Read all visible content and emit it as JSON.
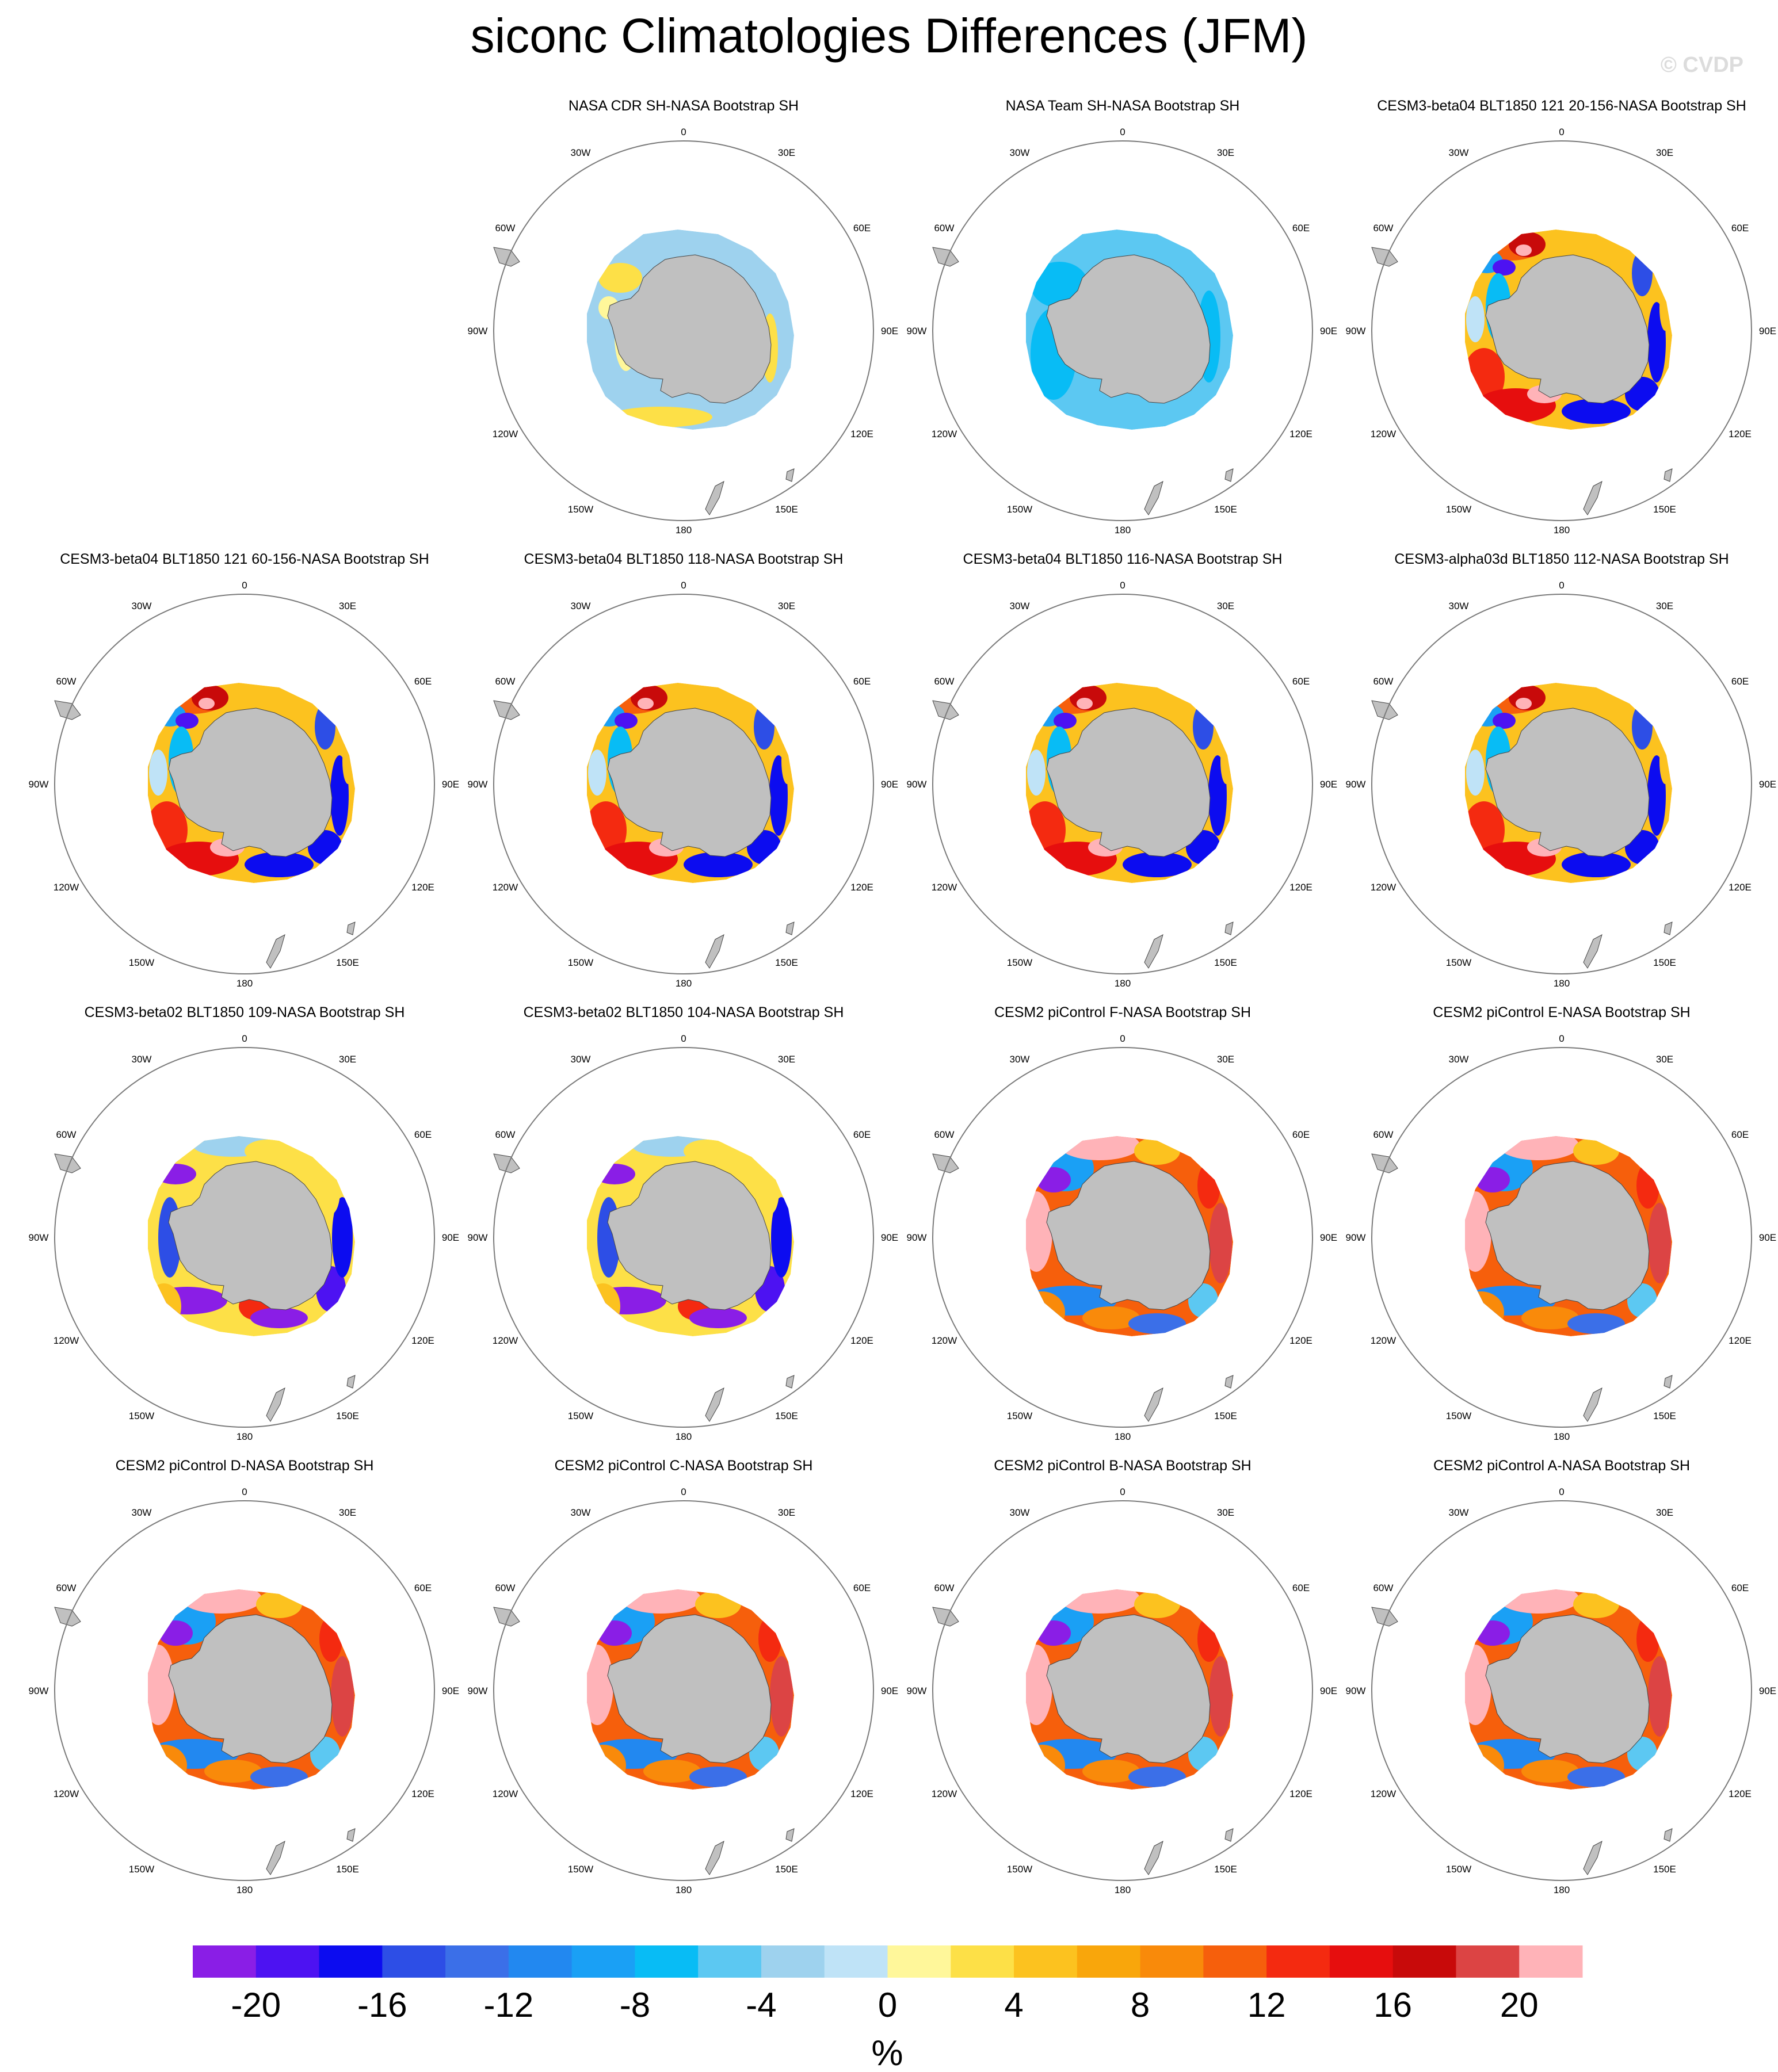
{
  "title": "siconc Climatologies Differences (JFM)",
  "watermark": "© CVDP",
  "longitude_labels": [
    "0",
    "30E",
    "60E",
    "90E",
    "120E",
    "150E",
    "180",
    "150W",
    "120W",
    "90W",
    "60W",
    "30W"
  ],
  "panels": [
    {
      "title": "NASA CDR SH-NASA Bootstrap SH",
      "pattern": "cdr"
    },
    {
      "title": "NASA Team SH-NASA Bootstrap SH",
      "pattern": "team"
    },
    {
      "title": "CESM3-beta04 BLT1850 121 20-156-NASA Bootstrap SH",
      "pattern": "beta04"
    },
    {
      "title": "CESM3-beta04 BLT1850 121 60-156-NASA Bootstrap SH",
      "pattern": "beta04"
    },
    {
      "title": "CESM3-beta04 BLT1850 118-NASA Bootstrap SH",
      "pattern": "beta04"
    },
    {
      "title": "CESM3-beta04 BLT1850 116-NASA Bootstrap SH",
      "pattern": "beta04"
    },
    {
      "title": "CESM3-alpha03d BLT1850 112-NASA Bootstrap SH",
      "pattern": "beta04"
    },
    {
      "title": "CESM3-beta02 BLT1850 109-NASA Bootstrap SH",
      "pattern": "beta02"
    },
    {
      "title": "CESM3-beta02 BLT1850 104-NASA Bootstrap SH",
      "pattern": "beta02"
    },
    {
      "title": "CESM2 piControl F-NASA Bootstrap SH",
      "pattern": "cesm2"
    },
    {
      "title": "CESM2 piControl E-NASA Bootstrap SH",
      "pattern": "cesm2"
    },
    {
      "title": "CESM2 piControl D-NASA Bootstrap SH",
      "pattern": "cesm2"
    },
    {
      "title": "CESM2 piControl C-NASA Bootstrap SH",
      "pattern": "cesm2"
    },
    {
      "title": "CESM2 piControl B-NASA Bootstrap SH",
      "pattern": "cesm2"
    },
    {
      "title": "CESM2 piControl A-NASA Bootstrap SH",
      "pattern": "cesm2"
    }
  ],
  "chart_data": {
    "type": "heatmap",
    "map_projection": "south polar stereographic",
    "colorbar": {
      "unit_label": "%",
      "tick_labels": [
        "-20",
        "-16",
        "-12",
        "-8",
        "-4",
        "0",
        "4",
        "8",
        "12",
        "16",
        "20"
      ],
      "levels": [
        -22,
        -20,
        -18,
        -16,
        -14,
        -12,
        -10,
        -8,
        -6,
        -4,
        -2,
        0,
        2,
        4,
        6,
        8,
        10,
        12,
        14,
        16,
        18,
        20,
        22
      ],
      "colors": [
        "#8a1ee6",
        "#4d12f2",
        "#0c0cf0",
        "#2d4ee6",
        "#3b6fe8",
        "#2288f0",
        "#1aa0f5",
        "#08bcf5",
        "#5cc8f2",
        "#9ed2ee",
        "#bfe3f7",
        "#fff79a",
        "#fde047",
        "#fcc21f",
        "#f9a60b",
        "#f98a0a",
        "#f65f0c",
        "#f42a10",
        "#e60e0e",
        "#c80a0a",
        "#dc4444",
        "#ffb3b8"
      ]
    },
    "land_color": "#c0c0c0"
  }
}
